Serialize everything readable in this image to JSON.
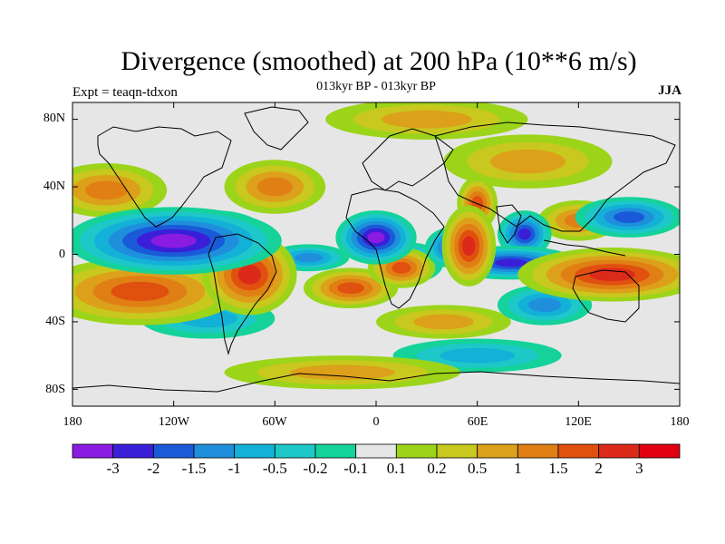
{
  "header": {
    "title": "Divergence (smoothed) at 200 hPa (10**6 m/s)",
    "subtitle": "013kyr BP - 013kyr BP",
    "experiment": "Expt = teaqn-tdxon",
    "season": "JJA"
  },
  "axes": {
    "lat_labels": [
      "80N",
      "40N",
      "0",
      "40S",
      "80S"
    ],
    "lon_labels": [
      "180",
      "120W",
      "60W",
      "0",
      "60E",
      "120E",
      "180"
    ]
  },
  "colorbar": {
    "labels": [
      "-3",
      "-2",
      "-1.5",
      "-1",
      "-0.5",
      "-0.2",
      "-0.1",
      "0.1",
      "0.2",
      "0.5",
      "1",
      "1.5",
      "2",
      "3"
    ],
    "colors": [
      "#8a1be0",
      "#3a1fd8",
      "#1a5ad8",
      "#1f8fdc",
      "#13b0d8",
      "#1ec8c8",
      "#14d29a",
      "#e6e6e6",
      "#9cd41a",
      "#c8c81e",
      "#dca01a",
      "#e07f14",
      "#e0500f",
      "#dc2a1a",
      "#e00012"
    ]
  },
  "chart_data": {
    "type": "heatmap",
    "title": "Divergence (smoothed) at 200 hPa (10**6 m/s)",
    "subtitle": "013kyr BP - 013kyr BP",
    "variable": "divergence",
    "units": "10**6 m/s",
    "level": "200 hPa",
    "season": "JJA",
    "x_range": [
      -180,
      180
    ],
    "y_range": [
      -90,
      90
    ],
    "contour_levels": [
      -3,
      -2,
      -1.5,
      -1,
      -0.5,
      -0.2,
      -0.1,
      0.1,
      0.2,
      0.5,
      1,
      1.5,
      2,
      3
    ],
    "features": [
      {
        "name": "east-pacific-convergence",
        "lon": -120,
        "lat": 8,
        "value": -3.2,
        "rx": 32,
        "ry": 10
      },
      {
        "name": "central-america-convergence",
        "lon": -95,
        "lat": 10,
        "value": -2.3,
        "rx": 16,
        "ry": 8
      },
      {
        "name": "north-africa-convergence",
        "lon": 0,
        "lat": 10,
        "value": -3.2,
        "rx": 12,
        "ry": 8
      },
      {
        "name": "arabian-sea-convergence",
        "lon": 45,
        "lat": 4,
        "value": -2.0,
        "rx": 8,
        "ry": 6
      },
      {
        "name": "bay-of-bengal-convergence",
        "lon": 88,
        "lat": 12,
        "value": -2.0,
        "rx": 8,
        "ry": 7
      },
      {
        "name": "indian-ocean-convergence",
        "lon": 80,
        "lat": -5,
        "value": -2.0,
        "rx": 20,
        "ry": 5
      },
      {
        "name": "north-pacific-convergence",
        "lon": 150,
        "lat": 22,
        "value": -1.8,
        "rx": 16,
        "ry": 6
      },
      {
        "name": "sahel-convergence",
        "lon": 20,
        "lat": -5,
        "value": -1.5,
        "rx": 10,
        "ry": 6
      },
      {
        "name": "south-america-divergence",
        "lon": -75,
        "lat": -12,
        "value": 2.6,
        "rx": 14,
        "ry": 12
      },
      {
        "name": "west-africa-divergence",
        "lon": 15,
        "lat": -8,
        "value": 1.8,
        "rx": 10,
        "ry": 6
      },
      {
        "name": "maritime-continent-divergence",
        "lon": 140,
        "lat": -12,
        "value": 2.4,
        "rx": 28,
        "ry": 8
      },
      {
        "name": "east-africa-divergence",
        "lon": 55,
        "lat": 5,
        "value": 2.8,
        "rx": 8,
        "ry": 12
      },
      {
        "name": "arabian-divergence",
        "lon": 60,
        "lat": 30,
        "value": 1.8,
        "rx": 6,
        "ry": 8
      },
      {
        "name": "south-pacific-divergence",
        "lon": -140,
        "lat": -22,
        "value": 1.6,
        "rx": 30,
        "ry": 10
      },
      {
        "name": "atlantic-divergence",
        "lon": -15,
        "lat": -20,
        "value": 1.5,
        "rx": 14,
        "ry": 6
      },
      {
        "name": "central-asia-divergence",
        "lon": 120,
        "lat": 20,
        "value": 1.4,
        "rx": 12,
        "ry": 6
      },
      {
        "name": "north-atlantic-divergence",
        "lon": -60,
        "lat": 40,
        "value": 1.2,
        "rx": 15,
        "ry": 8
      },
      {
        "name": "north-pacific-divergence",
        "lon": -160,
        "lat": 38,
        "value": 1.0,
        "rx": 18,
        "ry": 8
      },
      {
        "name": "arctic-divergence",
        "lon": 30,
        "lat": 80,
        "value": 0.6,
        "rx": 30,
        "ry": 6
      },
      {
        "name": "subtropical-south-pacific-convergence",
        "lon": -100,
        "lat": -38,
        "value": -0.8,
        "rx": 20,
        "ry": 6
      },
      {
        "name": "southern-ocean-convergence",
        "lon": 60,
        "lat": -60,
        "value": -0.7,
        "rx": 25,
        "ry": 5
      },
      {
        "name": "indian-ocean-south-convergence",
        "lon": 100,
        "lat": -30,
        "value": -1.0,
        "rx": 14,
        "ry": 6
      },
      {
        "name": "atlantic-tropical-convergence",
        "lon": -40,
        "lat": -2,
        "value": -1.2,
        "rx": 12,
        "ry": 4
      },
      {
        "name": "southern-ocean-divergence",
        "lon": -20,
        "lat": -70,
        "value": 0.8,
        "rx": 35,
        "ry": 5
      },
      {
        "name": "south-indian-divergence",
        "lon": 40,
        "lat": -40,
        "value": 0.8,
        "rx": 20,
        "ry": 5
      },
      {
        "name": "north-asia-divergence",
        "lon": 90,
        "lat": 55,
        "value": 0.8,
        "rx": 25,
        "ry": 8
      }
    ]
  }
}
